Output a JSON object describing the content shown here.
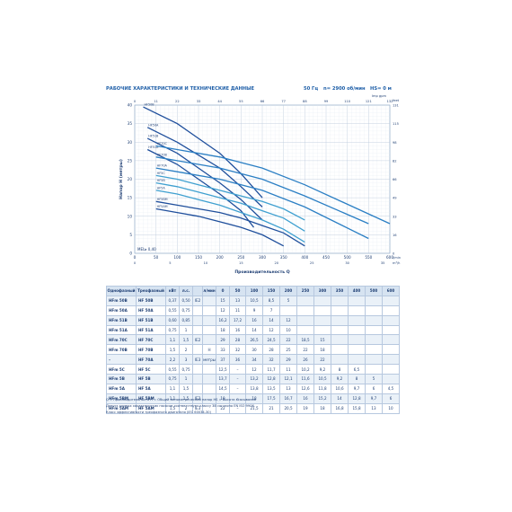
{
  "header": {
    "title": "РАБОЧИЕ ХАРАКТЕРИСТИКИ И ТЕХНИЧЕСКИЕ ДАННЫЕ",
    "freq": "50 Гц",
    "speed": "n= 2900 об/мин",
    "hs": "HS= 0 м"
  },
  "chart_data": {
    "type": "line",
    "title": "",
    "xlabel": "Производительность Q",
    "ylabel": "Напор H (метры)",
    "xlim": [
      0,
      600
    ],
    "ylim": [
      0,
      40
    ],
    "x_ticks": [
      0,
      50,
      100,
      150,
      200,
      250,
      300,
      350,
      400,
      450,
      500,
      550,
      600
    ],
    "y_ticks": [
      0,
      5,
      10,
      15,
      20,
      25,
      30,
      35,
      40
    ],
    "x_unit": "l/min",
    "top_unit": "Imp gpm",
    "right_unit_ft": "feet",
    "right_unit_m3": "m³/h",
    "mei": "MEI≥ 0,40",
    "grid": true,
    "series": [
      {
        "name": "HF50B",
        "x": [
          20,
          100,
          150,
          200,
          250,
          300
        ],
        "y": [
          39.5,
          35,
          31,
          27,
          21.5,
          15
        ]
      },
      {
        "name": "HF50A",
        "x": [
          30,
          100,
          150,
          200,
          250,
          300
        ],
        "y": [
          34,
          30,
          26.5,
          23,
          18,
          12.5
        ]
      },
      {
        "name": "HF51B",
        "x": [
          30,
          100,
          150,
          200,
          250,
          300
        ],
        "y": [
          31,
          27,
          23,
          19,
          14.5,
          9
        ]
      },
      {
        "name": "HF51A",
        "x": [
          30,
          100,
          150,
          200,
          250,
          280
        ],
        "y": [
          28,
          24,
          20,
          16,
          11.5,
          7
        ]
      },
      {
        "name": "HF70C",
        "x": [
          50,
          100,
          200,
          300,
          400,
          600
        ],
        "y": [
          29,
          28,
          26,
          23,
          18.5,
          8
        ]
      },
      {
        "name": "HF70B",
        "x": [
          50,
          100,
          200,
          300,
          400,
          550
        ],
        "y": [
          26,
          25,
          23,
          20,
          15.5,
          8
        ]
      },
      {
        "name": "HF70A",
        "x": [
          50,
          100,
          200,
          300,
          400,
          550
        ],
        "y": [
          23,
          22,
          20,
          17,
          12.5,
          4
        ]
      },
      {
        "name": "HF5C",
        "x": [
          50,
          100,
          150,
          200,
          250,
          300,
          350,
          400
        ],
        "y": [
          21,
          20,
          18.5,
          17,
          15.5,
          14,
          12,
          9
        ]
      },
      {
        "name": "HF5B",
        "x": [
          50,
          100,
          150,
          200,
          250,
          300,
          350,
          400
        ],
        "y": [
          19,
          18,
          16.5,
          15,
          13.5,
          11.5,
          9.5,
          6
        ]
      },
      {
        "name": "HF5A",
        "x": [
          50,
          100,
          150,
          200,
          250,
          300,
          350,
          400
        ],
        "y": [
          17,
          16,
          14.5,
          13,
          11,
          9,
          6.5,
          3
        ]
      },
      {
        "name": "HF5BM",
        "x": [
          50,
          100,
          150,
          200,
          250,
          300,
          350,
          400
        ],
        "y": [
          14,
          13,
          12,
          11,
          9.5,
          7.5,
          5.5,
          2
        ]
      },
      {
        "name": "HF5AM",
        "x": [
          50,
          100,
          150,
          200,
          250,
          300,
          350
        ],
        "y": [
          12,
          11,
          10,
          8.5,
          7,
          5,
          2
        ]
      }
    ]
  },
  "table": {
    "head1": [
      "ТИП",
      "МОЩНОСТЬ (P2)",
      "Q",
      "м³/ч",
      "0",
      "3",
      "6",
      "9",
      "12",
      "15",
      "18",
      "21",
      "24",
      "30",
      "36"
    ],
    "head2": [
      "Однофазный",
      "Трехфазный",
      "кВт",
      "л.с.",
      "",
      "л/мин",
      "0",
      "50",
      "100",
      "150",
      "200",
      "250",
      "300",
      "350",
      "400",
      "500",
      "600"
    ],
    "rows": [
      [
        "HFm 50B",
        "HF 50B",
        "0,37",
        "0,50",
        "IE2",
        "",
        "15",
        "13",
        "10,5",
        "8,5",
        "5",
        "",
        "",
        "",
        "",
        "",
        ""
      ],
      [
        "HFm 50A",
        "HF 50A",
        "0,55",
        "0,75",
        "",
        "",
        "12",
        "11",
        "9",
        "7",
        "",
        "",
        "",
        "",
        "",
        "",
        ""
      ],
      [
        "HFm 51B",
        "HF 51B",
        "0,60",
        "0,85",
        "",
        "",
        "16,2",
        "17,2",
        "16",
        "14",
        "12",
        "",
        "",
        "",
        "",
        "",
        ""
      ],
      [
        "HFm 51A",
        "HF 51A",
        "0,75",
        "1",
        "",
        "",
        "18",
        "16",
        "14",
        "12",
        "10",
        "",
        "",
        "",
        "",
        "",
        ""
      ],
      [
        "HFm 70C",
        "HF 70C",
        "1,1",
        "1,5",
        "IE2",
        "",
        "29",
        "28",
        "26,5",
        "24,5",
        "22",
        "18,5",
        "15",
        "",
        "",
        "",
        ""
      ],
      [
        "HFm 70B",
        "HF 70B",
        "1,5",
        "2",
        "",
        "H",
        "33",
        "32",
        "30",
        "28",
        "25",
        "22",
        "18",
        "",
        "",
        "",
        ""
      ],
      [
        "–",
        "HF 70A",
        "2,2",
        "3",
        "IE3",
        "метры",
        "37",
        "36",
        "34",
        "32",
        "29",
        "26",
        "22",
        "",
        "",
        "",
        ""
      ],
      [
        "HFm 5C",
        "HF 5C",
        "0,55",
        "0,75",
        "",
        "",
        "12,5",
        "–",
        "12",
        "11,7",
        "11",
        "10,2",
        "9,2",
        "8",
        "6,5",
        "",
        ""
      ],
      [
        "HFm 5B",
        "HF 5B",
        "0,75",
        "1",
        "",
        "",
        "13,7",
        "–",
        "13,2",
        "12,8",
        "12,1",
        "11,6",
        "10,5",
        "9,2",
        "8",
        "5",
        ""
      ],
      [
        "HFm 5A",
        "HF 5A",
        "1,1",
        "1,5",
        "",
        "",
        "14,5",
        "–",
        "13,8",
        "13,5",
        "13",
        "12,6",
        "11,8",
        "10,6",
        "9,7",
        "6",
        "4,5"
      ],
      [
        "HFm 5BM",
        "HF 5BM",
        "1,1",
        "1,5",
        "IE2",
        "",
        "19",
        "–",
        "18",
        "17,5",
        "16,7",
        "16",
        "15,2",
        "14",
        "12,8",
        "9,7",
        "6"
      ],
      [
        "HFm 5AM",
        "HF 5AM",
        "1,5",
        "2",
        "IE3",
        "",
        "22",
        "–",
        "21,5",
        "21",
        "20,5",
        "19",
        "18",
        "16,8",
        "15,8",
        "13",
        "10"
      ]
    ]
  },
  "notes": {
    "n1": "Q = Производительность   H = Общий манометрический напор   HS = Высота всасывания",
    "n2": "Допуск кривых характеристик насосов соответствует классу 3В согласно EN ISO 9906.",
    "n3": "Класс эффективности трехфазного двигателя (IEC 60034-30)"
  }
}
